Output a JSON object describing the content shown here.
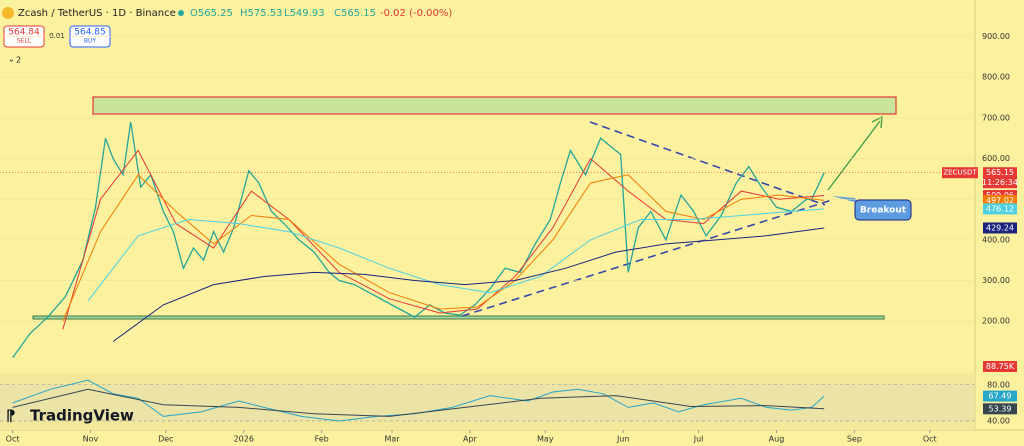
{
  "header": {
    "symbol": "Zcash / TetherUS · 1D · Binance",
    "open": "O565.25",
    "high": "H575.53",
    "low": "L549.93",
    "close": "C565.15",
    "change": "-0.02 (-0.00%)"
  },
  "trade": {
    "sell_price": "564.84",
    "sell": "SELL",
    "spread": "0.01",
    "buy_price": "564.85",
    "buy": "BUY",
    "indicators": "2"
  },
  "brand": "TradingView",
  "chart_data": {
    "type": "line",
    "annotation": "Breakout",
    "symbol_label": "ZECUSDT",
    "countdown": "11:26:34",
    "volume_label": "88.75K",
    "xlim": [
      -5,
      383
    ],
    "xticks": [
      {
        "value": 0,
        "label": "Oct"
      },
      {
        "value": 31,
        "label": "Nov"
      },
      {
        "value": 61,
        "label": "Dec"
      },
      {
        "value": 92,
        "label": "2026"
      },
      {
        "value": 123,
        "label": "Feb"
      },
      {
        "value": 151,
        "label": "Mar"
      },
      {
        "value": 182,
        "label": "Apr"
      },
      {
        "value": 212,
        "label": "May"
      },
      {
        "value": 243,
        "label": "Jun"
      },
      {
        "value": 273,
        "label": "Jul"
      },
      {
        "value": 304,
        "label": "Aug"
      },
      {
        "value": 335,
        "label": "Sep"
      },
      {
        "value": 365,
        "label": "Oct"
      }
    ],
    "ylim": [
      75,
      990
    ],
    "yticks": [
      {
        "value": 200,
        "label": "200.00"
      },
      {
        "value": 300,
        "label": "300.00"
      },
      {
        "value": 400,
        "label": "400.00"
      },
      {
        "value": 500,
        "label": "500.00"
      },
      {
        "value": 600,
        "label": "600.00"
      },
      {
        "value": 700,
        "label": "700.00"
      },
      {
        "value": 800,
        "label": "800.00"
      },
      {
        "value": 900,
        "label": "900.00"
      }
    ],
    "price_labels": [
      {
        "value": 565.15,
        "label": "565.15",
        "color": "#e53935"
      },
      {
        "value": 509.06,
        "label": "509.06",
        "color": "#e53935"
      },
      {
        "value": 497.02,
        "label": "497.02",
        "color": "#f57c00"
      },
      {
        "value": 476.12,
        "label": "476.12",
        "color": "#4dd0e1"
      },
      {
        "value": 429.24,
        "label": "429.24",
        "color": "#1a237e"
      }
    ],
    "series": [
      {
        "color": "#26a69a",
        "width": 1.3,
        "x": [
          0,
          7,
          14,
          21,
          28,
          33,
          37,
          40,
          44,
          47,
          51,
          55,
          60,
          64,
          68,
          72,
          76,
          80,
          84,
          88,
          94,
          98,
          103,
          108,
          114,
          120,
          126,
          130,
          136,
          142,
          148,
          154,
          160,
          166,
          172,
          178,
          184,
          190,
          196,
          202,
          208,
          214,
          218,
          222,
          228,
          234,
          238,
          242,
          245,
          249,
          254,
          260,
          266,
          271,
          276,
          282,
          288,
          293,
          298,
          304,
          310,
          316,
          318,
          323
        ],
        "values": [
          110,
          170,
          210,
          260,
          350,
          480,
          650,
          600,
          560,
          690,
          530,
          560,
          470,
          420,
          330,
          380,
          350,
          420,
          370,
          430,
          570,
          540,
          470,
          440,
          400,
          370,
          320,
          300,
          290,
          270,
          250,
          230,
          210,
          240,
          220,
          215,
          240,
          280,
          330,
          320,
          390,
          450,
          540,
          620,
          560,
          650,
          630,
          610,
          320,
          430,
          470,
          400,
          510,
          470,
          410,
          460,
          540,
          580,
          530,
          480,
          470,
          500,
          500,
          565.15
        ]
      },
      {
        "color": "#e53935",
        "width": 1,
        "x": [
          20,
          35,
          50,
          65,
          80,
          95,
          110,
          130,
          150,
          170,
          185,
          200,
          215,
          230,
          245,
          260,
          275,
          290,
          305,
          323
        ],
        "values": [
          180,
          500,
          620,
          440,
          380,
          520,
          450,
          320,
          255,
          220,
          230,
          310,
          430,
          600,
          520,
          450,
          440,
          520,
          500,
          509.06
        ]
      },
      {
        "color": "#f57c00",
        "width": 1,
        "x": [
          20,
          35,
          50,
          65,
          80,
          95,
          110,
          130,
          150,
          170,
          185,
          200,
          215,
          230,
          245,
          260,
          275,
          290,
          305,
          323
        ],
        "values": [
          200,
          420,
          560,
          470,
          390,
          460,
          450,
          340,
          270,
          230,
          235,
          300,
          400,
          540,
          560,
          470,
          450,
          500,
          510,
          497.02
        ]
      },
      {
        "color": "#4dd0e1",
        "width": 1,
        "x": [
          30,
          50,
          70,
          90,
          110,
          130,
          150,
          170,
          190,
          210,
          230,
          250,
          270,
          290,
          310,
          323
        ],
        "values": [
          250,
          410,
          450,
          440,
          420,
          380,
          330,
          290,
          270,
          310,
          400,
          450,
          450,
          460,
          470,
          476.12
        ]
      },
      {
        "color": "#1a237e",
        "width": 1,
        "x": [
          40,
          60,
          80,
          100,
          120,
          140,
          160,
          180,
          200,
          220,
          240,
          260,
          280,
          300,
          323
        ],
        "values": [
          150,
          240,
          290,
          310,
          320,
          315,
          300,
          290,
          300,
          330,
          370,
          390,
          400,
          410,
          429.24
        ]
      }
    ],
    "rsi": {
      "ylim": [
        30,
        93
      ],
      "yticks": [
        {
          "value": 80,
          "label": "80.00"
        },
        {
          "value": 40,
          "label": "40.00"
        }
      ],
      "labels": [
        {
          "value": 67.49,
          "label": "67.49",
          "color": "#26a6c9"
        },
        {
          "value": 53.39,
          "label": "53.39",
          "color": "#37474f"
        }
      ],
      "series": [
        {
          "color": "#26a6c9",
          "x": [
            0,
            15,
            30,
            40,
            50,
            60,
            75,
            90,
            100,
            115,
            130,
            145,
            160,
            175,
            190,
            205,
            215,
            225,
            235,
            245,
            255,
            265,
            275,
            290,
            300,
            310,
            318,
            323
          ],
          "values": [
            60,
            75,
            85,
            70,
            65,
            45,
            50,
            62,
            55,
            45,
            40,
            45,
            48,
            55,
            68,
            62,
            72,
            75,
            70,
            55,
            60,
            50,
            58,
            65,
            55,
            52,
            55,
            67.49
          ]
        },
        {
          "color": "#37474f",
          "x": [
            0,
            30,
            60,
            90,
            120,
            150,
            180,
            210,
            240,
            270,
            300,
            323
          ],
          "values": [
            55,
            75,
            58,
            55,
            48,
            45,
            55,
            65,
            68,
            56,
            57,
            53.39
          ]
        }
      ]
    }
  }
}
